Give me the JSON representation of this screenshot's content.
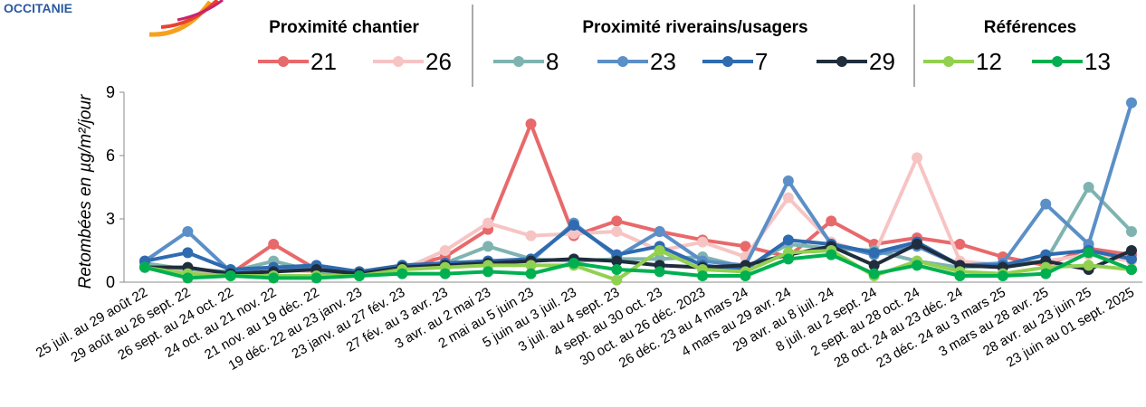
{
  "logo_text": "OCCITANIE",
  "chart_data": {
    "type": "line",
    "y_label": "Retombées en µg/m²/jour",
    "categories": [
      "25 juil. au 29 août 22",
      "29 août au 26 sept. 22",
      "26 sept. au 24 oct. 22",
      "24 oct. au 21 nov. 22",
      "21 nov.  au 19 déc. 22",
      "19 déc. 22 au 23 janv. 23",
      "23 janv. au 27 fév. 23",
      "27 fév. au 3 avr. 23",
      "3 avr. au 2 mai 23",
      "2 mai au 5 juin 23",
      "5 juin au 3 juil. 23",
      "3 juil. au 4 sept. 23",
      "4 sept. au 30 oct. 23",
      "30 oct. au 26 déc. 2023",
      "26 déc. 23 au 4 mars 24",
      "4 mars au 29 avr. 24",
      "29 avr. au 8 juil. 24",
      "8 juil. au 2 sept. 24",
      "2 sept. au 28 oct. 24",
      "28 oct. 24 au 23 déc. 24",
      "23 déc. 24 au 3 mars 25",
      "3 mars au 28 avr. 25",
      "28 avr. au 23 juin 25",
      "23 juin au 01 sept. 2025"
    ],
    "series": [
      {
        "name": "21",
        "color": "#e8696b",
        "values": [
          0.7,
          0.5,
          0.4,
          1.8,
          0.6,
          0.5,
          0.7,
          1.2,
          2.5,
          7.5,
          2.2,
          2.9,
          2.4,
          2.0,
          1.7,
          1.2,
          2.9,
          1.8,
          2.1,
          1.8,
          1.2,
          0.8,
          1.6,
          1.3
        ]
      },
      {
        "name": "26",
        "color": "#f7c4c4",
        "values": [
          0.7,
          0.5,
          0.4,
          0.6,
          0.5,
          0.4,
          0.6,
          1.5,
          2.8,
          2.2,
          2.3,
          2.4,
          1.5,
          1.9,
          1.2,
          4.0,
          1.9,
          1.3,
          5.9,
          1.0,
          0.8,
          1.0,
          1.3,
          1.0
        ]
      },
      {
        "name": "8",
        "color": "#7fb3b0",
        "values": [
          0.9,
          0.6,
          0.5,
          1.0,
          0.5,
          0.3,
          0.8,
          0.9,
          1.7,
          1.1,
          1.0,
          1.1,
          1.1,
          1.2,
          0.7,
          1.8,
          1.6,
          1.5,
          1.0,
          0.7,
          0.8,
          1.0,
          4.5,
          2.4
        ]
      },
      {
        "name": "23",
        "color": "#5b8fc7",
        "values": [
          1.0,
          2.4,
          0.5,
          0.7,
          0.6,
          0.4,
          0.8,
          0.9,
          1.0,
          1.0,
          2.8,
          1.2,
          2.4,
          1.0,
          0.8,
          4.8,
          1.8,
          1.3,
          1.7,
          0.8,
          0.9,
          3.7,
          1.8,
          8.5
        ]
      },
      {
        "name": "7",
        "color": "#2e6bb0",
        "values": [
          1.0,
          1.4,
          0.6,
          0.7,
          0.8,
          0.5,
          0.8,
          0.9,
          1.0,
          1.1,
          2.7,
          1.3,
          1.7,
          0.8,
          0.6,
          2.0,
          1.8,
          1.4,
          1.9,
          0.8,
          0.8,
          1.3,
          1.5,
          1.1
        ]
      },
      {
        "name": "29",
        "color": "#1f2d3d",
        "values": [
          0.7,
          0.7,
          0.4,
          0.5,
          0.6,
          0.4,
          0.7,
          0.8,
          0.9,
          1.0,
          1.1,
          1.0,
          0.8,
          0.7,
          0.8,
          1.3,
          1.7,
          0.8,
          1.8,
          0.8,
          0.7,
          1.0,
          0.6,
          1.5
        ]
      },
      {
        "name": "12",
        "color": "#92d050",
        "values": [
          0.7,
          0.4,
          0.3,
          0.3,
          0.3,
          0.3,
          0.6,
          0.7,
          0.8,
          0.8,
          0.8,
          0.1,
          1.5,
          0.6,
          0.5,
          1.4,
          1.5,
          0.3,
          1.0,
          0.5,
          0.4,
          0.7,
          0.8,
          0.6
        ]
      },
      {
        "name": "13",
        "color": "#00b050",
        "values": [
          0.7,
          0.2,
          0.3,
          0.2,
          0.2,
          0.3,
          0.4,
          0.4,
          0.5,
          0.4,
          0.9,
          0.6,
          0.5,
          0.3,
          0.3,
          1.1,
          1.3,
          0.4,
          0.8,
          0.3,
          0.3,
          0.4,
          1.4,
          0.6
        ]
      }
    ],
    "legend_groups": [
      {
        "title": "Proximité chantier",
        "series": [
          0,
          1
        ]
      },
      {
        "title": "Proximité riverains/usagers",
        "series": [
          2,
          3,
          4,
          5
        ]
      },
      {
        "title": "Références",
        "series": [
          6,
          7
        ]
      }
    ],
    "ylim": [
      0,
      9
    ],
    "yticks": [
      0,
      3,
      6,
      9
    ],
    "grid": false
  }
}
